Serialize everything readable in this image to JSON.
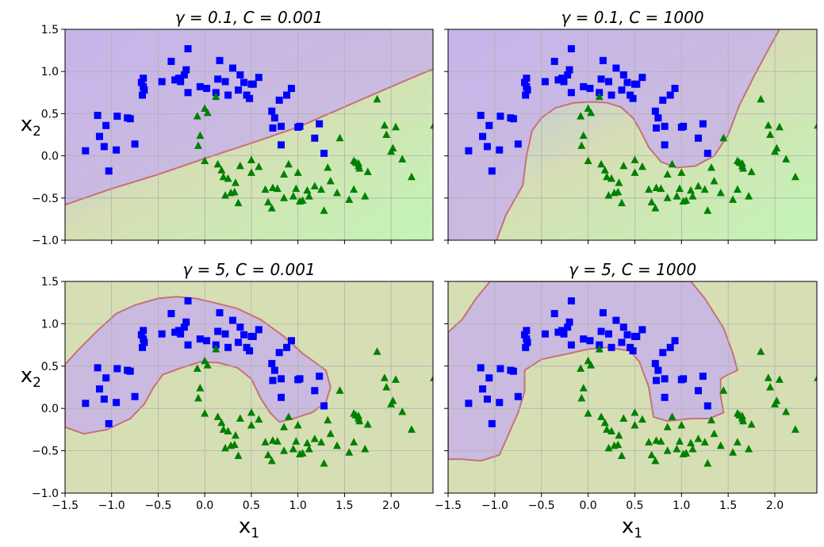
{
  "figure": {
    "xlabel": "x",
    "xlabel_sub": "1",
    "ylabel": "x",
    "ylabel_sub": "2"
  },
  "colors": {
    "square_class": "#0000ff",
    "triangle_class": "#008000",
    "region_square": "#c8b4e8",
    "region_triangle": "#d6dfb4",
    "low_level": "#b9b5f7",
    "high_level": "#c2f5b5",
    "boundary": "#c7707a",
    "grid": "#b0b0b0"
  },
  "chart_data": [
    {
      "type": "scatter",
      "title": "γ = 0.1, C = 0.001",
      "gamma": 0.1,
      "C": 0.001,
      "xlim": [
        -1.5,
        2.45
      ],
      "ylim": [
        -1.0,
        1.5
      ],
      "xticks": [
        -1.5,
        -1.0,
        -0.5,
        0.0,
        0.5,
        1.0,
        1.5,
        2.0
      ],
      "yticks": [
        -1.0,
        -0.5,
        0.0,
        0.5,
        1.0,
        1.5
      ],
      "grid": true,
      "boundary_type": "line",
      "boundary_points": [
        [
          -1.5,
          -0.58
        ],
        [
          -1.0,
          -0.39
        ],
        [
          -0.5,
          -0.22
        ],
        [
          0.0,
          -0.03
        ],
        [
          0.5,
          0.15
        ],
        [
          1.0,
          0.34
        ],
        [
          1.5,
          0.58
        ],
        [
          2.0,
          0.82
        ],
        [
          2.45,
          1.03
        ]
      ]
    },
    {
      "type": "scatter",
      "title": "γ = 0.1, C = 1000",
      "gamma": 0.1,
      "C": 1000,
      "xlim": [
        -1.5,
        2.45
      ],
      "ylim": [
        -1.0,
        1.5
      ],
      "xticks": [
        -1.5,
        -1.0,
        -0.5,
        0.0,
        0.5,
        1.0,
        1.5,
        2.0
      ],
      "yticks": [
        -1.0,
        -0.5,
        0.0,
        0.5,
        1.0,
        1.5
      ],
      "grid": true,
      "boundary_type": "curve",
      "boundary_points": [
        [
          -0.98,
          -1.0
        ],
        [
          -0.88,
          -0.7
        ],
        [
          -0.7,
          -0.35
        ],
        [
          -0.66,
          0.0
        ],
        [
          -0.6,
          0.3
        ],
        [
          -0.5,
          0.45
        ],
        [
          -0.35,
          0.57
        ],
        [
          -0.15,
          0.63
        ],
        [
          0.05,
          0.64
        ],
        [
          0.2,
          0.63
        ],
        [
          0.35,
          0.58
        ],
        [
          0.48,
          0.45
        ],
        [
          0.56,
          0.3
        ],
        [
          0.65,
          0.1
        ],
        [
          0.78,
          -0.07
        ],
        [
          0.95,
          -0.14
        ],
        [
          1.15,
          -0.12
        ],
        [
          1.35,
          0.0
        ],
        [
          1.5,
          0.25
        ],
        [
          1.62,
          0.6
        ],
        [
          1.78,
          0.95
        ],
        [
          1.95,
          1.3
        ],
        [
          2.05,
          1.5
        ]
      ]
    },
    {
      "type": "scatter",
      "title": "γ = 5, C = 0.001",
      "gamma": 5,
      "C": 0.001,
      "xlim": [
        -1.5,
        2.45
      ],
      "ylim": [
        -1.0,
        1.5
      ],
      "xticks": [
        -1.5,
        -1.0,
        -0.5,
        0.0,
        0.5,
        1.0,
        1.5,
        2.0
      ],
      "yticks": [
        -1.0,
        -0.5,
        0.0,
        0.5,
        1.0,
        1.5
      ],
      "grid": true,
      "boundary_type": "closed",
      "boundary_points": [
        [
          -1.5,
          0.52
        ],
        [
          -1.35,
          0.7
        ],
        [
          -1.15,
          0.92
        ],
        [
          -0.95,
          1.12
        ],
        [
          -0.75,
          1.22
        ],
        [
          -0.5,
          1.3
        ],
        [
          -0.3,
          1.32
        ],
        [
          -0.1,
          1.3
        ],
        [
          0.1,
          1.25
        ],
        [
          0.35,
          1.18
        ],
        [
          0.6,
          1.05
        ],
        [
          0.85,
          0.85
        ],
        [
          1.05,
          0.65
        ],
        [
          1.3,
          0.45
        ],
        [
          1.35,
          0.25
        ],
        [
          1.3,
          0.07
        ],
        [
          1.15,
          -0.05
        ],
        [
          0.95,
          -0.12
        ],
        [
          0.8,
          -0.16
        ],
        [
          0.7,
          -0.05
        ],
        [
          0.6,
          0.12
        ],
        [
          0.5,
          0.35
        ],
        [
          0.35,
          0.48
        ],
        [
          0.15,
          0.54
        ],
        [
          -0.05,
          0.55
        ],
        [
          -0.25,
          0.48
        ],
        [
          -0.45,
          0.4
        ],
        [
          -0.55,
          0.25
        ],
        [
          -0.65,
          0.05
        ],
        [
          -0.8,
          -0.12
        ],
        [
          -1.05,
          -0.25
        ],
        [
          -1.3,
          -0.3
        ],
        [
          -1.5,
          -0.22
        ]
      ]
    },
    {
      "type": "scatter",
      "title": "γ = 5, C = 1000",
      "gamma": 5,
      "C": 1000,
      "xlim": [
        -1.5,
        2.45
      ],
      "ylim": [
        -1.0,
        1.5
      ],
      "xticks": [
        -1.5,
        -1.0,
        -0.5,
        0.0,
        0.5,
        1.0,
        1.5,
        2.0
      ],
      "yticks": [
        -1.0,
        -0.5,
        0.0,
        0.5,
        1.0,
        1.5
      ],
      "grid": true,
      "boundary_type": "closed",
      "boundary_points": [
        [
          -1.5,
          0.9
        ],
        [
          -1.35,
          1.05
        ],
        [
          -1.2,
          1.3
        ],
        [
          -1.05,
          1.5
        ],
        [
          1.1,
          1.5
        ],
        [
          1.25,
          1.3
        ],
        [
          1.45,
          0.95
        ],
        [
          1.55,
          0.65
        ],
        [
          1.6,
          0.45
        ],
        [
          1.5,
          0.4
        ],
        [
          1.42,
          0.35
        ],
        [
          1.42,
          0.15
        ],
        [
          1.45,
          -0.05
        ],
        [
          1.3,
          -0.12
        ],
        [
          1.1,
          -0.12
        ],
        [
          0.85,
          -0.15
        ],
        [
          0.7,
          -0.1
        ],
        [
          0.65,
          0.25
        ],
        [
          0.55,
          0.55
        ],
        [
          0.45,
          0.68
        ],
        [
          0.2,
          0.72
        ],
        [
          0.0,
          0.7
        ],
        [
          -0.2,
          0.65
        ],
        [
          -0.5,
          0.58
        ],
        [
          -0.68,
          0.45
        ],
        [
          -0.68,
          0.2
        ],
        [
          -0.75,
          -0.05
        ],
        [
          -0.85,
          -0.3
        ],
        [
          -0.95,
          -0.55
        ],
        [
          -1.15,
          -0.62
        ],
        [
          -1.35,
          -0.6
        ],
        [
          -1.5,
          -0.6
        ]
      ]
    }
  ],
  "points_class_square": [
    [
      -1.28,
      0.06
    ],
    [
      -1.15,
      0.48
    ],
    [
      -1.13,
      0.23
    ],
    [
      -1.08,
      0.11
    ],
    [
      -1.06,
      0.36
    ],
    [
      -1.03,
      -0.18
    ],
    [
      -0.95,
      0.07
    ],
    [
      -0.94,
      0.47
    ],
    [
      -0.83,
      0.45
    ],
    [
      -0.8,
      0.44
    ],
    [
      -0.75,
      0.14
    ],
    [
      -0.68,
      0.87
    ],
    [
      -0.67,
      0.72
    ],
    [
      -0.66,
      0.92
    ],
    [
      -0.65,
      0.78
    ],
    [
      -0.66,
      0.82
    ],
    [
      -0.46,
      0.88
    ],
    [
      -0.36,
      1.12
    ],
    [
      -0.32,
      0.9
    ],
    [
      -0.28,
      0.92
    ],
    [
      -0.26,
      0.88
    ],
    [
      -0.22,
      0.96
    ],
    [
      -0.2,
      1.02
    ],
    [
      -0.18,
      0.75
    ],
    [
      -0.18,
      1.27
    ],
    [
      -0.05,
      0.82
    ],
    [
      0.02,
      0.8
    ],
    [
      0.12,
      0.75
    ],
    [
      0.14,
      0.91
    ],
    [
      0.16,
      1.13
    ],
    [
      0.22,
      0.88
    ],
    [
      0.25,
      0.72
    ],
    [
      0.3,
      1.04
    ],
    [
      0.36,
      0.78
    ],
    [
      0.38,
      0.96
    ],
    [
      0.42,
      0.87
    ],
    [
      0.45,
      0.72
    ],
    [
      0.48,
      0.68
    ],
    [
      0.5,
      0.85
    ],
    [
      0.52,
      0.85
    ],
    [
      0.58,
      0.93
    ],
    [
      0.72,
      0.53
    ],
    [
      0.73,
      0.33
    ],
    [
      0.75,
      0.45
    ],
    [
      0.8,
      0.66
    ],
    [
      0.82,
      0.35
    ],
    [
      0.88,
      0.72
    ],
    [
      0.93,
      0.8
    ],
    [
      0.82,
      0.13
    ],
    [
      1.02,
      0.35
    ],
    [
      1.0,
      0.34
    ],
    [
      1.18,
      0.21
    ],
    [
      1.23,
      0.38
    ],
    [
      1.28,
      0.03
    ]
  ],
  "points_class_triangle": [
    [
      0.12,
      0.7
    ],
    [
      0.0,
      0.56
    ],
    [
      0.03,
      0.51
    ],
    [
      -0.08,
      0.47
    ],
    [
      -0.05,
      0.24
    ],
    [
      -0.07,
      0.12
    ],
    [
      0.0,
      -0.06
    ],
    [
      0.14,
      -0.1
    ],
    [
      0.18,
      -0.17
    ],
    [
      0.2,
      -0.25
    ],
    [
      0.25,
      -0.27
    ],
    [
      0.22,
      -0.47
    ],
    [
      0.28,
      -0.44
    ],
    [
      0.32,
      -0.43
    ],
    [
      0.36,
      -0.56
    ],
    [
      0.33,
      -0.32
    ],
    [
      0.38,
      -0.12
    ],
    [
      0.5,
      -0.2
    ],
    [
      0.5,
      -0.05
    ],
    [
      0.58,
      -0.13
    ],
    [
      0.65,
      -0.4
    ],
    [
      0.68,
      -0.55
    ],
    [
      0.72,
      -0.62
    ],
    [
      0.73,
      -0.38
    ],
    [
      0.78,
      -0.39
    ],
    [
      0.85,
      -0.22
    ],
    [
      0.85,
      -0.5
    ],
    [
      0.95,
      -0.48
    ],
    [
      0.98,
      -0.39
    ],
    [
      1.0,
      -0.2
    ],
    [
      1.02,
      -0.54
    ],
    [
      1.05,
      -0.53
    ],
    [
      1.1,
      -0.41
    ],
    [
      1.12,
      -0.48
    ],
    [
      1.18,
      -0.36
    ],
    [
      1.25,
      -0.4
    ],
    [
      1.28,
      -0.65
    ],
    [
      1.32,
      -0.14
    ],
    [
      1.35,
      -0.3
    ],
    [
      1.42,
      -0.44
    ],
    [
      1.45,
      0.21
    ],
    [
      1.55,
      -0.52
    ],
    [
      1.6,
      -0.06
    ],
    [
      1.6,
      -0.4
    ],
    [
      1.65,
      -0.09
    ],
    [
      1.65,
      -0.12
    ],
    [
      1.66,
      -0.15
    ],
    [
      1.72,
      -0.48
    ],
    [
      1.75,
      -0.19
    ],
    [
      1.85,
      0.67
    ],
    [
      1.93,
      0.36
    ],
    [
      1.95,
      0.25
    ],
    [
      2.0,
      0.05
    ],
    [
      2.02,
      0.09
    ],
    [
      2.05,
      0.34
    ],
    [
      2.12,
      -0.04
    ],
    [
      2.22,
      -0.25
    ],
    [
      2.46,
      0.36
    ],
    [
      1.62,
      -0.08
    ],
    [
      0.9,
      -0.1
    ]
  ]
}
